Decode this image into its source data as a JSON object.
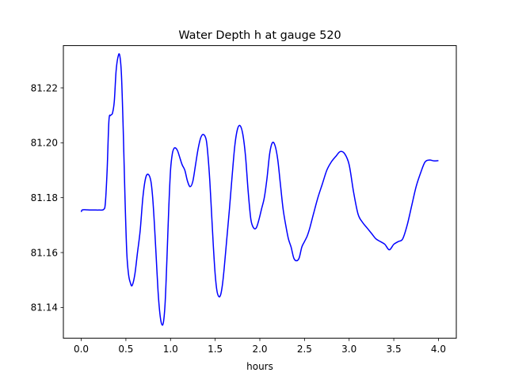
{
  "chart_data": {
    "type": "line",
    "title": "Water Depth h at gauge 520",
    "xlabel": "hours",
    "ylabel": "",
    "xlim": [
      -0.2,
      4.2
    ],
    "ylim": [
      81.1288,
      81.2354
    ],
    "xticks": [
      0.0,
      0.5,
      1.0,
      1.5,
      2.0,
      2.5,
      3.0,
      3.5,
      4.0
    ],
    "xtick_labels": [
      "0.0",
      "0.5",
      "1.0",
      "1.5",
      "2.0",
      "2.5",
      "3.0",
      "3.5",
      "4.0"
    ],
    "yticks": [
      81.14,
      81.16,
      81.18,
      81.2,
      81.22
    ],
    "ytick_labels": [
      "81.14",
      "81.16",
      "81.18",
      "81.20",
      "81.22"
    ],
    "grid": false,
    "series": [
      {
        "name": "",
        "color": "#0000ff",
        "x": [
          0.0,
          0.01,
          0.05,
          0.1,
          0.15,
          0.2,
          0.25,
          0.27,
          0.29,
          0.31,
          0.33,
          0.35,
          0.37,
          0.39,
          0.41,
          0.43,
          0.45,
          0.47,
          0.49,
          0.51,
          0.53,
          0.55,
          0.57,
          0.6,
          0.63,
          0.66,
          0.69,
          0.72,
          0.75,
          0.78,
          0.8,
          0.82,
          0.84,
          0.86,
          0.88,
          0.9,
          0.92,
          0.94,
          0.96,
          0.98,
          1.0,
          1.02,
          1.04,
          1.06,
          1.08,
          1.1,
          1.13,
          1.16,
          1.19,
          1.22,
          1.25,
          1.28,
          1.31,
          1.34,
          1.37,
          1.4,
          1.42,
          1.44,
          1.46,
          1.48,
          1.5,
          1.52,
          1.54,
          1.56,
          1.58,
          1.6,
          1.63,
          1.66,
          1.69,
          1.72,
          1.75,
          1.78,
          1.81,
          1.84,
          1.87,
          1.9,
          1.93,
          1.96,
          1.99,
          2.02,
          2.05,
          2.08,
          2.11,
          2.14,
          2.17,
          2.2,
          2.23,
          2.26,
          2.29,
          2.32,
          2.35,
          2.38,
          2.41,
          2.44,
          2.47,
          2.5,
          2.53,
          2.56,
          2.6,
          2.65,
          2.7,
          2.75,
          2.8,
          2.85,
          2.9,
          2.95,
          3.0,
          3.05,
          3.1,
          3.15,
          3.2,
          3.25,
          3.3,
          3.35,
          3.4,
          3.45,
          3.5,
          3.55,
          3.6,
          3.65,
          3.7,
          3.75,
          3.8,
          3.85,
          3.9,
          3.95,
          4.0
        ],
        "y": [
          81.1748,
          81.1755,
          81.1756,
          81.1755,
          81.1755,
          81.1755,
          81.1757,
          81.178,
          81.19,
          81.208,
          81.21,
          81.2108,
          81.215,
          81.226,
          81.231,
          81.232,
          81.225,
          81.205,
          81.18,
          81.16,
          81.152,
          81.149,
          81.148,
          81.152,
          81.16,
          81.168,
          81.18,
          81.187,
          81.1885,
          81.186,
          81.18,
          81.17,
          81.158,
          81.146,
          81.138,
          81.134,
          81.1345,
          81.142,
          81.158,
          81.176,
          81.19,
          81.196,
          81.198,
          81.198,
          81.197,
          81.195,
          81.192,
          81.19,
          81.186,
          81.184,
          81.186,
          81.192,
          81.198,
          81.202,
          81.203,
          81.201,
          81.195,
          81.186,
          81.174,
          81.162,
          81.152,
          81.146,
          81.144,
          81.1445,
          81.148,
          81.154,
          81.165,
          81.176,
          81.188,
          81.199,
          81.205,
          81.2062,
          81.203,
          81.195,
          81.182,
          81.172,
          81.169,
          81.169,
          81.172,
          81.176,
          81.18,
          81.187,
          81.196,
          81.2,
          81.199,
          81.194,
          81.185,
          81.176,
          81.17,
          81.165,
          81.162,
          81.158,
          81.157,
          81.158,
          81.162,
          81.164,
          81.166,
          81.169,
          81.174,
          81.18,
          81.185,
          81.19,
          81.193,
          81.195,
          81.1968,
          81.196,
          81.192,
          81.182,
          81.174,
          81.171,
          81.169,
          81.167,
          81.165,
          81.164,
          81.163,
          81.161,
          81.163,
          81.164,
          81.165,
          81.17,
          81.177,
          81.184,
          81.189,
          81.193,
          81.1937,
          81.1934,
          81.1935
        ]
      }
    ]
  }
}
